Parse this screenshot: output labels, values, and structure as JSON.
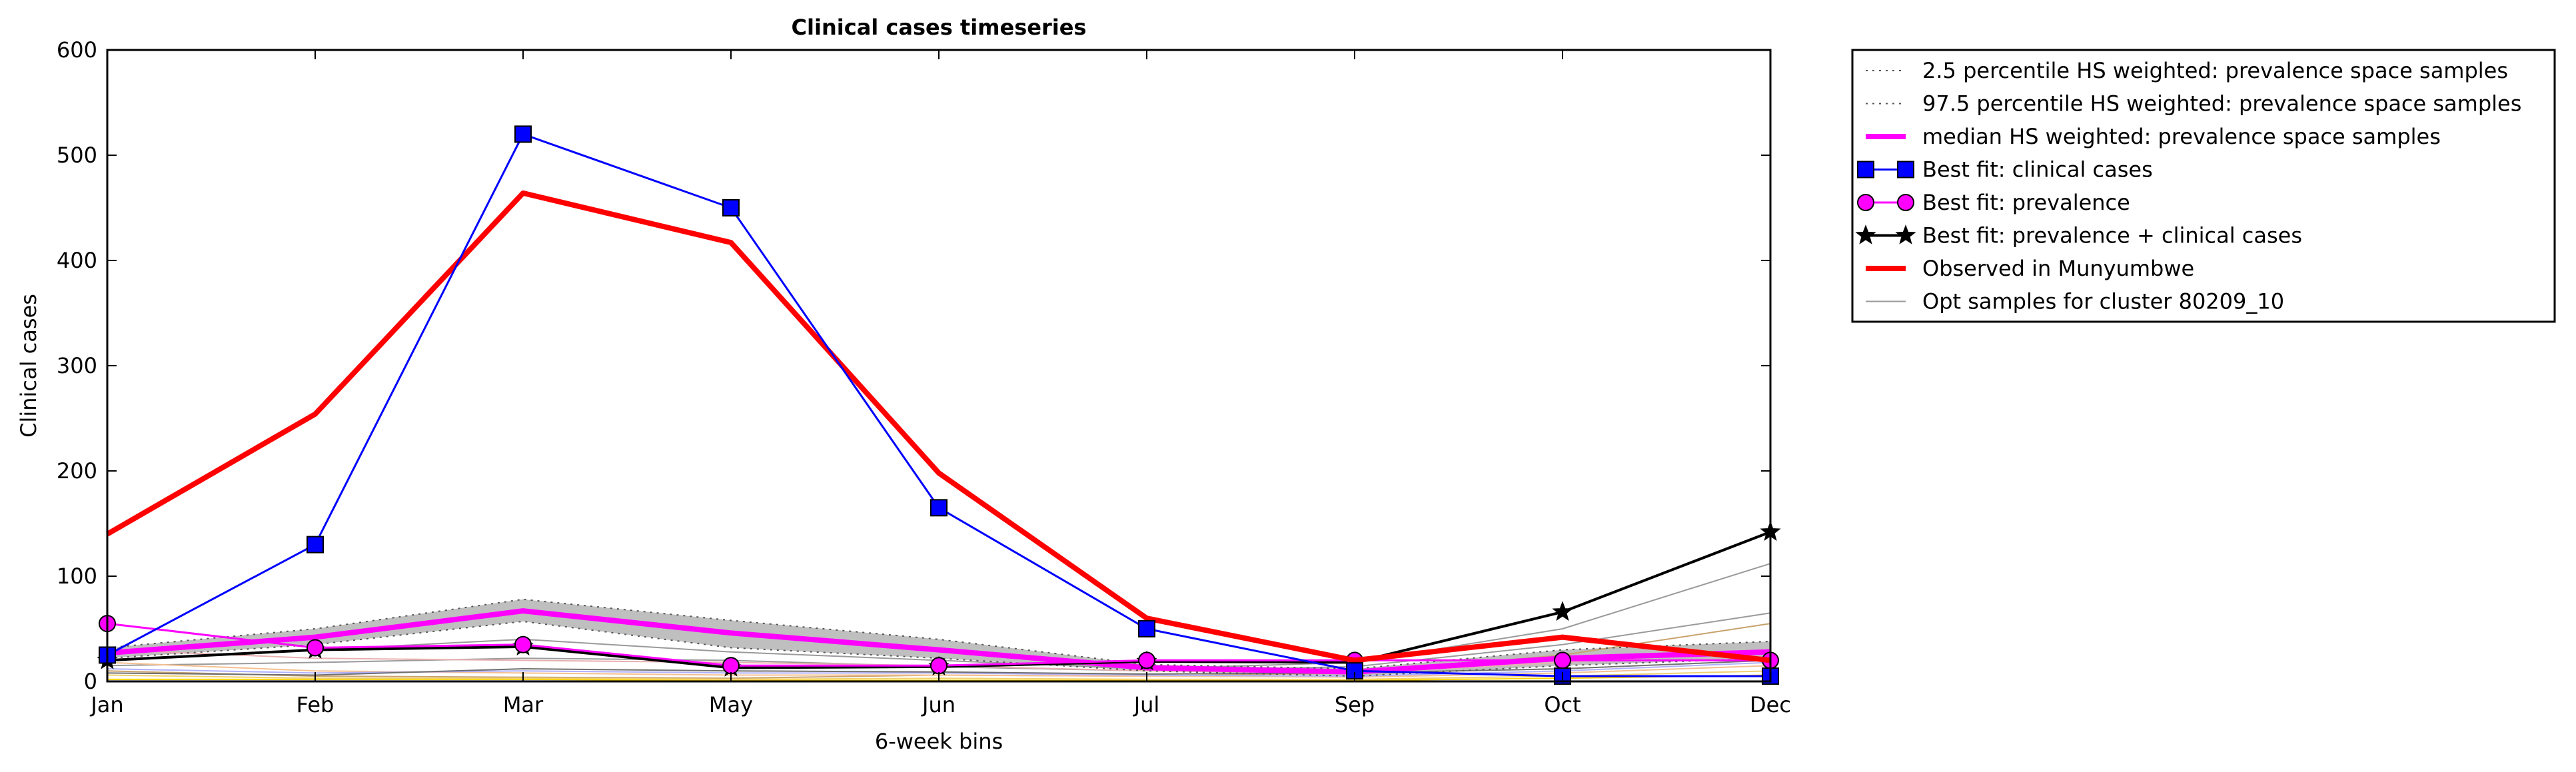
{
  "chart_data": {
    "type": "line",
    "title": "Clinical cases timeseries",
    "xlabel": "6-week bins",
    "ylabel": "Clinical cases",
    "categories": [
      "Jan",
      "Feb",
      "Mar",
      "May",
      "Jun",
      "Jul",
      "Sep",
      "Oct",
      "Dec"
    ],
    "ylim": [
      0,
      600
    ],
    "yticks": [
      "0",
      "100",
      "200",
      "300",
      "400",
      "500",
      "600"
    ],
    "grid": false,
    "legend_position": "outside-right",
    "band": {
      "lower": [
        22,
        35,
        57,
        32,
        22,
        10,
        5,
        15,
        22
      ],
      "upper": [
        32,
        50,
        78,
        58,
        40,
        16,
        12,
        30,
        38
      ],
      "color": "#bfbfbf"
    },
    "series": [
      {
        "name": "2.5 percentile HS weighted: prevalence space samples",
        "style": "dotted",
        "color": "#555555",
        "values": [
          22,
          35,
          57,
          32,
          22,
          10,
          5,
          15,
          22
        ]
      },
      {
        "name": "97.5 percentile HS weighted: prevalence space samples",
        "style": "dotted",
        "color": "#555555",
        "values": [
          32,
          50,
          78,
          58,
          40,
          16,
          12,
          30,
          38
        ]
      },
      {
        "name": "median HS weighted: prevalence space samples",
        "style": "solid-thick",
        "color": "#ff00ff",
        "values": [
          27,
          42,
          67,
          46,
          30,
          13,
          9,
          22,
          28
        ]
      },
      {
        "name": "Best fit: clinical cases",
        "style": "square-marker",
        "color": "#0000ff",
        "values": [
          25,
          130,
          520,
          450,
          165,
          50,
          10,
          5,
          5
        ]
      },
      {
        "name": "Best fit: prevalence",
        "style": "circle-marker",
        "color": "#ff00ff",
        "values": [
          55,
          32,
          35,
          15,
          15,
          20,
          20,
          20,
          20
        ]
      },
      {
        "name": "Best fit: prevalence + clinical cases",
        "style": "star-marker",
        "color": "#000000",
        "values": [
          20,
          30,
          33,
          13,
          14,
          19,
          18,
          66,
          142
        ]
      },
      {
        "name": "Observed in Munyumbwe",
        "style": "solid-thick",
        "color": "#ff0000",
        "values": [
          140,
          254,
          464,
          417,
          198,
          60,
          20,
          42,
          20
        ]
      },
      {
        "name": "Opt samples for cluster 80209_10",
        "style": "thin",
        "color": "#9a9a9a",
        "values": [
          20,
          30,
          40,
          28,
          20,
          12,
          18,
          50,
          112
        ]
      }
    ],
    "extra_sample_lines": [
      {
        "color": "#c8a26c",
        "values": [
          10,
          5,
          4,
          3,
          6,
          5,
          8,
          25,
          55
        ]
      },
      {
        "color": "#9a9a9a",
        "values": [
          15,
          18,
          22,
          20,
          14,
          10,
          14,
          35,
          65
        ]
      },
      {
        "color": "#e8b0b0",
        "values": [
          30,
          22,
          20,
          18,
          15,
          10,
          8,
          18,
          30
        ]
      },
      {
        "color": "#f5c090",
        "values": [
          18,
          10,
          8,
          6,
          6,
          5,
          4,
          8,
          15
        ]
      },
      {
        "color": "#ffd200",
        "values": [
          2,
          2,
          2,
          1,
          1,
          1,
          1,
          3,
          6
        ]
      },
      {
        "color": "#f0d070",
        "values": [
          6,
          3,
          3,
          2,
          3,
          2,
          2,
          5,
          10
        ]
      },
      {
        "color": "#b0b0ff",
        "values": [
          12,
          8,
          10,
          8,
          8,
          6,
          5,
          10,
          18
        ]
      },
      {
        "color": "#707070",
        "values": [
          8,
          6,
          12,
          10,
          9,
          7,
          8,
          12,
          20
        ]
      }
    ]
  }
}
